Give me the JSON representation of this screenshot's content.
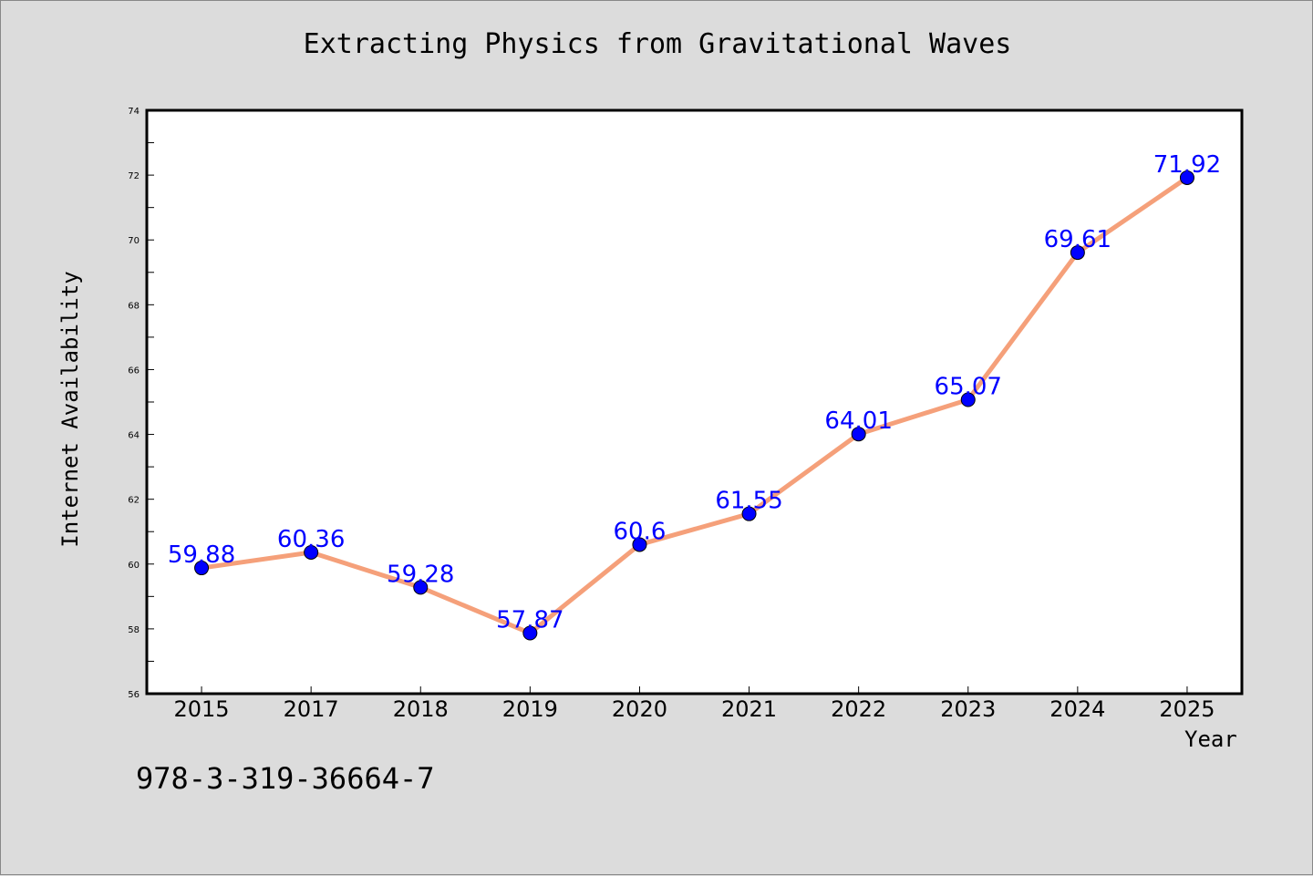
{
  "chart_data": {
    "type": "line",
    "title": "Extracting Physics from Gravitational Waves",
    "xlabel": "Year",
    "ylabel": "Internet Availability",
    "categories": [
      "2015",
      "2017",
      "2018",
      "2019",
      "2020",
      "2021",
      "2022",
      "2023",
      "2024",
      "2025"
    ],
    "series": [
      {
        "values": [
          59.88,
          60.36,
          59.28,
          57.87,
          60.6,
          61.55,
          64.01,
          65.07,
          69.61,
          71.92
        ],
        "labels": [
          "59.88",
          "60.36",
          "59.28",
          "57.87",
          "60.6",
          "61.55",
          "64.01",
          "65.07",
          "69.61",
          "71.92"
        ]
      }
    ],
    "ylim": [
      56,
      74
    ],
    "yticks": [
      56,
      58,
      60,
      62,
      64,
      66,
      68,
      70,
      72,
      74
    ],
    "grid": false,
    "line_color": "#f5a07a",
    "marker_color": "#0000ff",
    "label_color": "#0000ff"
  },
  "footer": {
    "isbn": "978-3-319-36664-7"
  }
}
